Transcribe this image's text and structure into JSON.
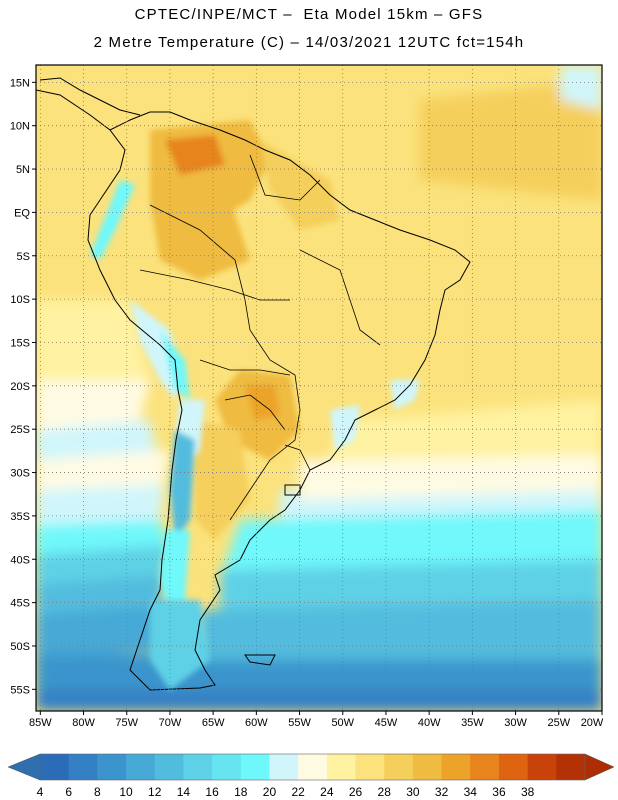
{
  "header": {
    "title_line1": "CPTEC/INPE/MCT –  Eta Model 15km – GFS",
    "title_line2": "2 Metre Temperature (C) – 14/03/2021 12UTC fct=154h"
  },
  "map": {
    "lat_ticks": [
      "15N",
      "10N",
      "5N",
      "EQ",
      "5S",
      "10S",
      "15S",
      "20S",
      "25S",
      "30S",
      "35S",
      "40S",
      "45S",
      "50S",
      "55S"
    ],
    "lon_ticks": [
      "85W",
      "80W",
      "75W",
      "70W",
      "65W",
      "60W",
      "55W",
      "50W",
      "45W",
      "40W",
      "35W",
      "30W",
      "25W",
      "20W"
    ],
    "lat_range": [
      17,
      -57.5
    ],
    "lon_range": [
      -85.5,
      -20
    ],
    "gridlines": "dotted"
  },
  "colorbar": {
    "labels": [
      "4",
      "6",
      "8",
      "10",
      "12",
      "14",
      "16",
      "18",
      "20",
      "22",
      "24",
      "26",
      "28",
      "30",
      "32",
      "34",
      "36",
      "38"
    ],
    "colors": [
      "#2b6cb8",
      "#3480c5",
      "#3b95cc",
      "#46a9d6",
      "#52bcde",
      "#5ed1e6",
      "#66e4ef",
      "#6ff8fb",
      "#d0f6fb",
      "#fffbe3",
      "#fff2a0",
      "#fbe27c",
      "#f5cf5b",
      "#efbb40",
      "#eca32a",
      "#e7841c",
      "#de6411",
      "#c9420a",
      "#b33205"
    ]
  },
  "legend": {
    "left_arrow_color": "#2f6fae",
    "right_arrow_color": "#ad2d04"
  }
}
